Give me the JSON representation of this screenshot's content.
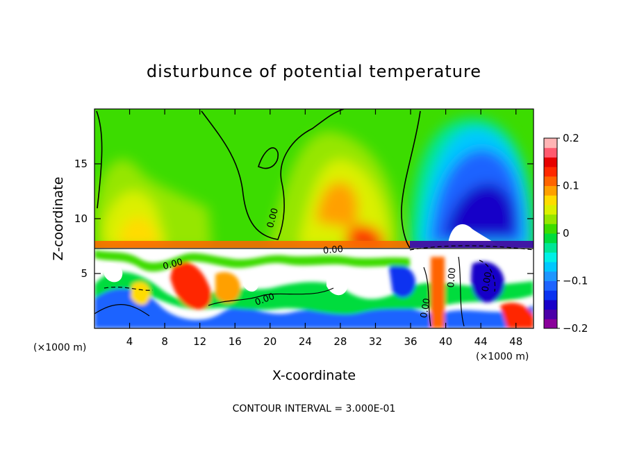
{
  "chart_data": {
    "type": "heatmap",
    "title": "disturbunce of potential temperature",
    "xlabel": "X-coordinate",
    "ylabel": "Z-coordinate",
    "x_unit_left": "(×1000 m)",
    "x_unit_right": "(×1000 m)",
    "footer": "CONTOUR INTERVAL = 3.000E-01",
    "xlim": [
      0,
      50
    ],
    "ylim": [
      0,
      20
    ],
    "x_ticks": [
      4,
      8,
      12,
      16,
      20,
      24,
      28,
      32,
      36,
      40,
      44,
      48
    ],
    "y_ticks": [
      5,
      10,
      15
    ],
    "colorbar": {
      "range": [
        -0.2,
        0.2
      ],
      "ticks": [
        {
          "value": 0.2,
          "label": "0.2"
        },
        {
          "value": 0.1,
          "label": "0.1"
        },
        {
          "value": 0.0,
          "label": "0"
        },
        {
          "value": -0.1,
          "label": "−0.1"
        },
        {
          "value": -0.2,
          "label": "−0.2"
        }
      ],
      "colors": [
        "#8a009a",
        "#4b00a8",
        "#1900c8",
        "#0a32f0",
        "#1e64ff",
        "#1e96ff",
        "#00c8ff",
        "#00f0e6",
        "#00e696",
        "#00dc3c",
        "#3cdc00",
        "#96e600",
        "#dcf000",
        "#ffdc00",
        "#ffa000",
        "#ff6400",
        "#ff2800",
        "#e60000",
        "#ff5a6e",
        "#ffb4b4"
      ]
    },
    "contour_labels": [
      {
        "text": "0.00",
        "x": 20.6,
        "z": 10.0,
        "rotate": -75
      },
      {
        "text": "0.00",
        "x": 19.5,
        "z": 2.4,
        "rotate": -20
      },
      {
        "text": "0.00",
        "x": 9.0,
        "z": 5.6,
        "rotate": -15
      },
      {
        "text": "0.00",
        "x": 27.2,
        "z": 6.9,
        "rotate": -5
      },
      {
        "text": "0.00",
        "x": 41.0,
        "z": 4.6,
        "rotate": -85
      },
      {
        "text": "0.00",
        "x": 45.0,
        "z": 4.2,
        "rotate": -80
      },
      {
        "text": "0.00",
        "x": 38.0,
        "z": 1.8,
        "rotate": -80
      }
    ],
    "regions": [
      {
        "name": "upper-background",
        "value": 0.0
      },
      {
        "name": "upper-left-warm-plume",
        "x": 7,
        "z": 11,
        "value": 0.07
      },
      {
        "name": "upper-middle-warm-plume",
        "x": 27,
        "z": 12.5,
        "value": 0.12
      },
      {
        "name": "upper-right-cold-plume",
        "x": 43,
        "z": 13,
        "value": -0.2
      },
      {
        "name": "lower-turbulent-layer",
        "z_range": [
          0,
          7.3
        ],
        "value_range": [
          -0.2,
          0.2
        ]
      }
    ]
  }
}
